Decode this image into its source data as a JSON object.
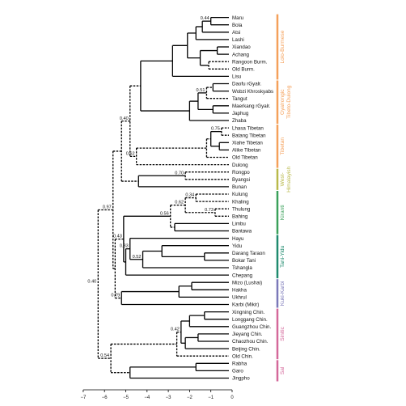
{
  "leaves": [
    "Maru",
    "Bola",
    "Atsi",
    "Lashi",
    "Xiandao",
    "Achang",
    "Rangoon Burm.",
    "Old Burm.",
    "Lisu",
    "Daofu rGyalr.",
    "Wobzi Khroskyabs",
    "Tangut",
    "Maerkang rGyalr.",
    "Japhug",
    "Zhaba",
    "Lhasa Tibetan",
    "Batang Tibetan",
    "Xiahe Tibetan",
    "Alike Tibetan",
    "Old Tibetan",
    "Dulong",
    "Rongpo",
    "Byangsi",
    "Bunan",
    "Kulung",
    "Khaling",
    "Thulung",
    "Bahing",
    "Limbu",
    "Bantawa",
    "Hayu",
    "Yidu",
    "Darang Taraon",
    "Bokar Tani",
    "Tshangla",
    "Chepang",
    "Mizo (Lushai)",
    "Hakha",
    "Ukhrul",
    "Karbi (Mikir)",
    "Xingning Chin.",
    "Longgang Chin.",
    "Guangzhou Chin.",
    "Jieyang Chin.",
    "Chaozhou Chin.",
    "Beijing Chin.",
    "Old Chin.",
    "Rabha",
    "Garo",
    "Jingpho"
  ],
  "node_labels": [
    "0.44",
    "0.51",
    "0.75",
    "0.62",
    "0.40",
    "0.70",
    "0.97",
    "0.34",
    "0.62",
    "0.73",
    "0.56",
    "0.33",
    "0.52",
    "0.40",
    "0.43",
    "0.79",
    "0.42",
    "0.54"
  ],
  "axis_ticks": [
    "-7",
    "-6",
    "-5",
    "-4",
    "-3",
    "-2",
    "-1",
    "0"
  ],
  "groups": [
    {
      "label": "Lolo-Burmese",
      "color": "#f5a05a"
    },
    {
      "label": "Gyalrongic\nTibeto-Dulong",
      "color": "#f5a05a"
    },
    {
      "label": "Tibetan",
      "color": "#f5a05a"
    },
    {
      "label": "West-\nHimalayish",
      "color": "#b9b94a"
    },
    {
      "label": "Kiranti",
      "color": "#3aa05a"
    },
    {
      "label": "Tani-Yidu",
      "color": "#1f8a6e"
    },
    {
      "label": "Kuki-Karbi",
      "color": "#7b78b8"
    },
    {
      "label": "Sinitic",
      "color": "#d4689a"
    },
    {
      "label": "Sal",
      "color": "#d4689a"
    }
  ]
}
